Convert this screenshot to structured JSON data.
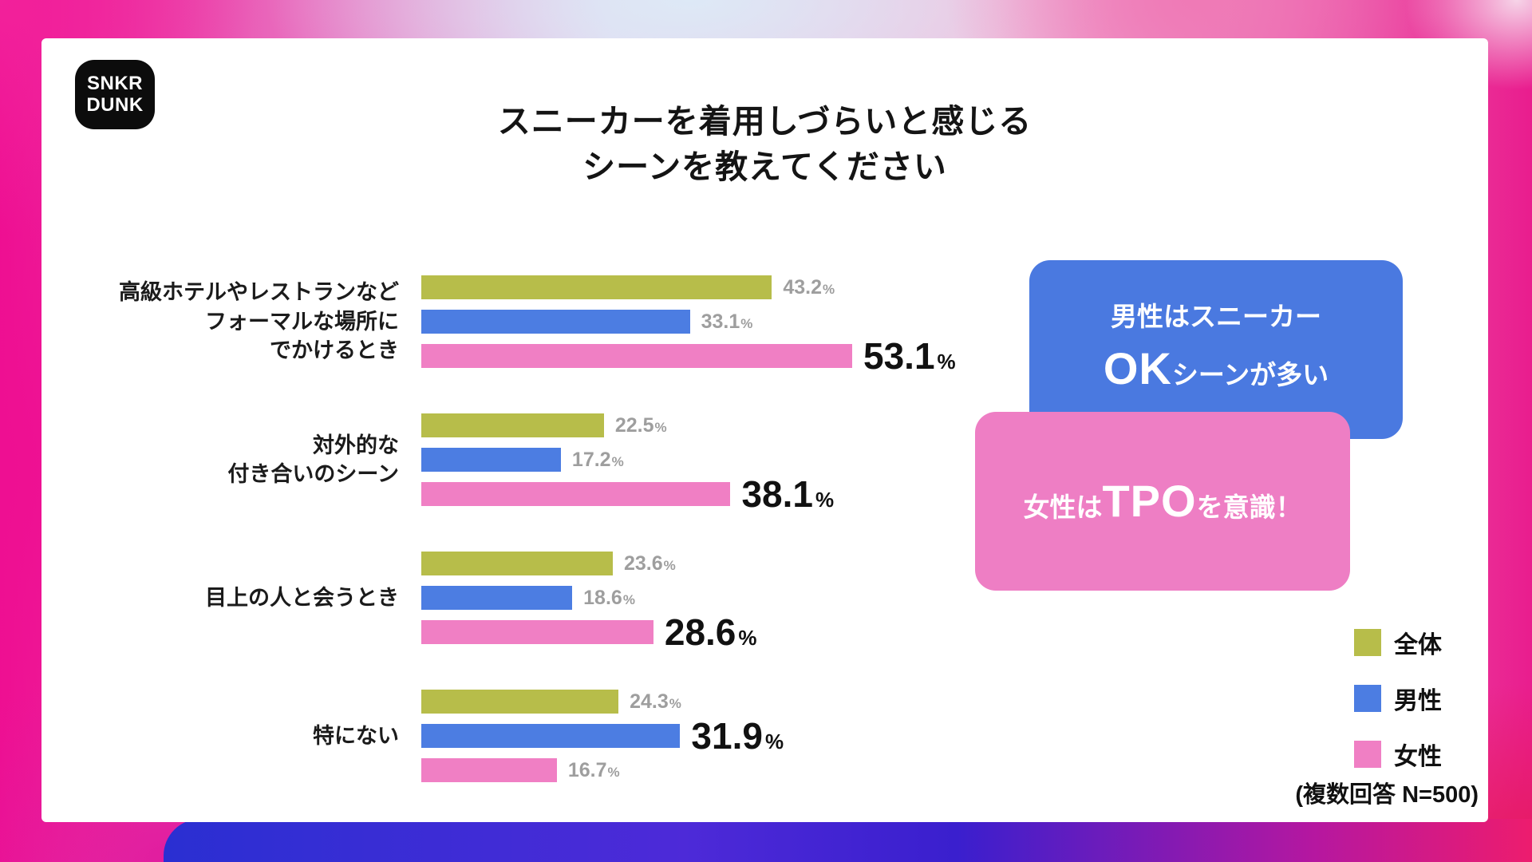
{
  "logo": {
    "line1": "SNKR",
    "line2": "DUNK"
  },
  "title": {
    "line1": "スニーカーを着用しづらいと感じる",
    "line2": "シーンを教えてください"
  },
  "chart_data": {
    "type": "bar",
    "orientation": "horizontal",
    "unit": "%",
    "xlim": [
      0,
      55
    ],
    "series_keys": [
      "overall",
      "male",
      "female"
    ],
    "series_names": [
      "全体",
      "男性",
      "女性"
    ],
    "series_colors": [
      "#b7bd4a",
      "#4c7de2",
      "#f07fc4"
    ],
    "categories": [
      {
        "label_lines": [
          "高級ホテルやレストランなど",
          "フォーマルな場所に",
          "でかけるとき"
        ],
        "values": [
          43.2,
          33.1,
          53.1
        ],
        "emphasized_series": 2
      },
      {
        "label_lines": [
          "対外的な",
          "付き合いのシーン"
        ],
        "values": [
          22.5,
          17.2,
          38.1
        ],
        "emphasized_series": 2
      },
      {
        "label_lines": [
          "目上の人と会うとき"
        ],
        "values": [
          23.6,
          18.6,
          28.6
        ],
        "emphasized_series": 2
      },
      {
        "label_lines": [
          "特にない"
        ],
        "values": [
          24.3,
          31.9,
          16.7
        ],
        "emphasized_series": 1
      }
    ],
    "note": "(複数回答 N=500)"
  },
  "callouts": {
    "male": {
      "color": "#4a79e0",
      "line1": "男性はスニーカー",
      "big": "OK",
      "rest": "シーンが多い"
    },
    "female": {
      "color": "#ee7ec4",
      "pre": "女性は",
      "big": "TPO",
      "post": "を意識！"
    }
  }
}
